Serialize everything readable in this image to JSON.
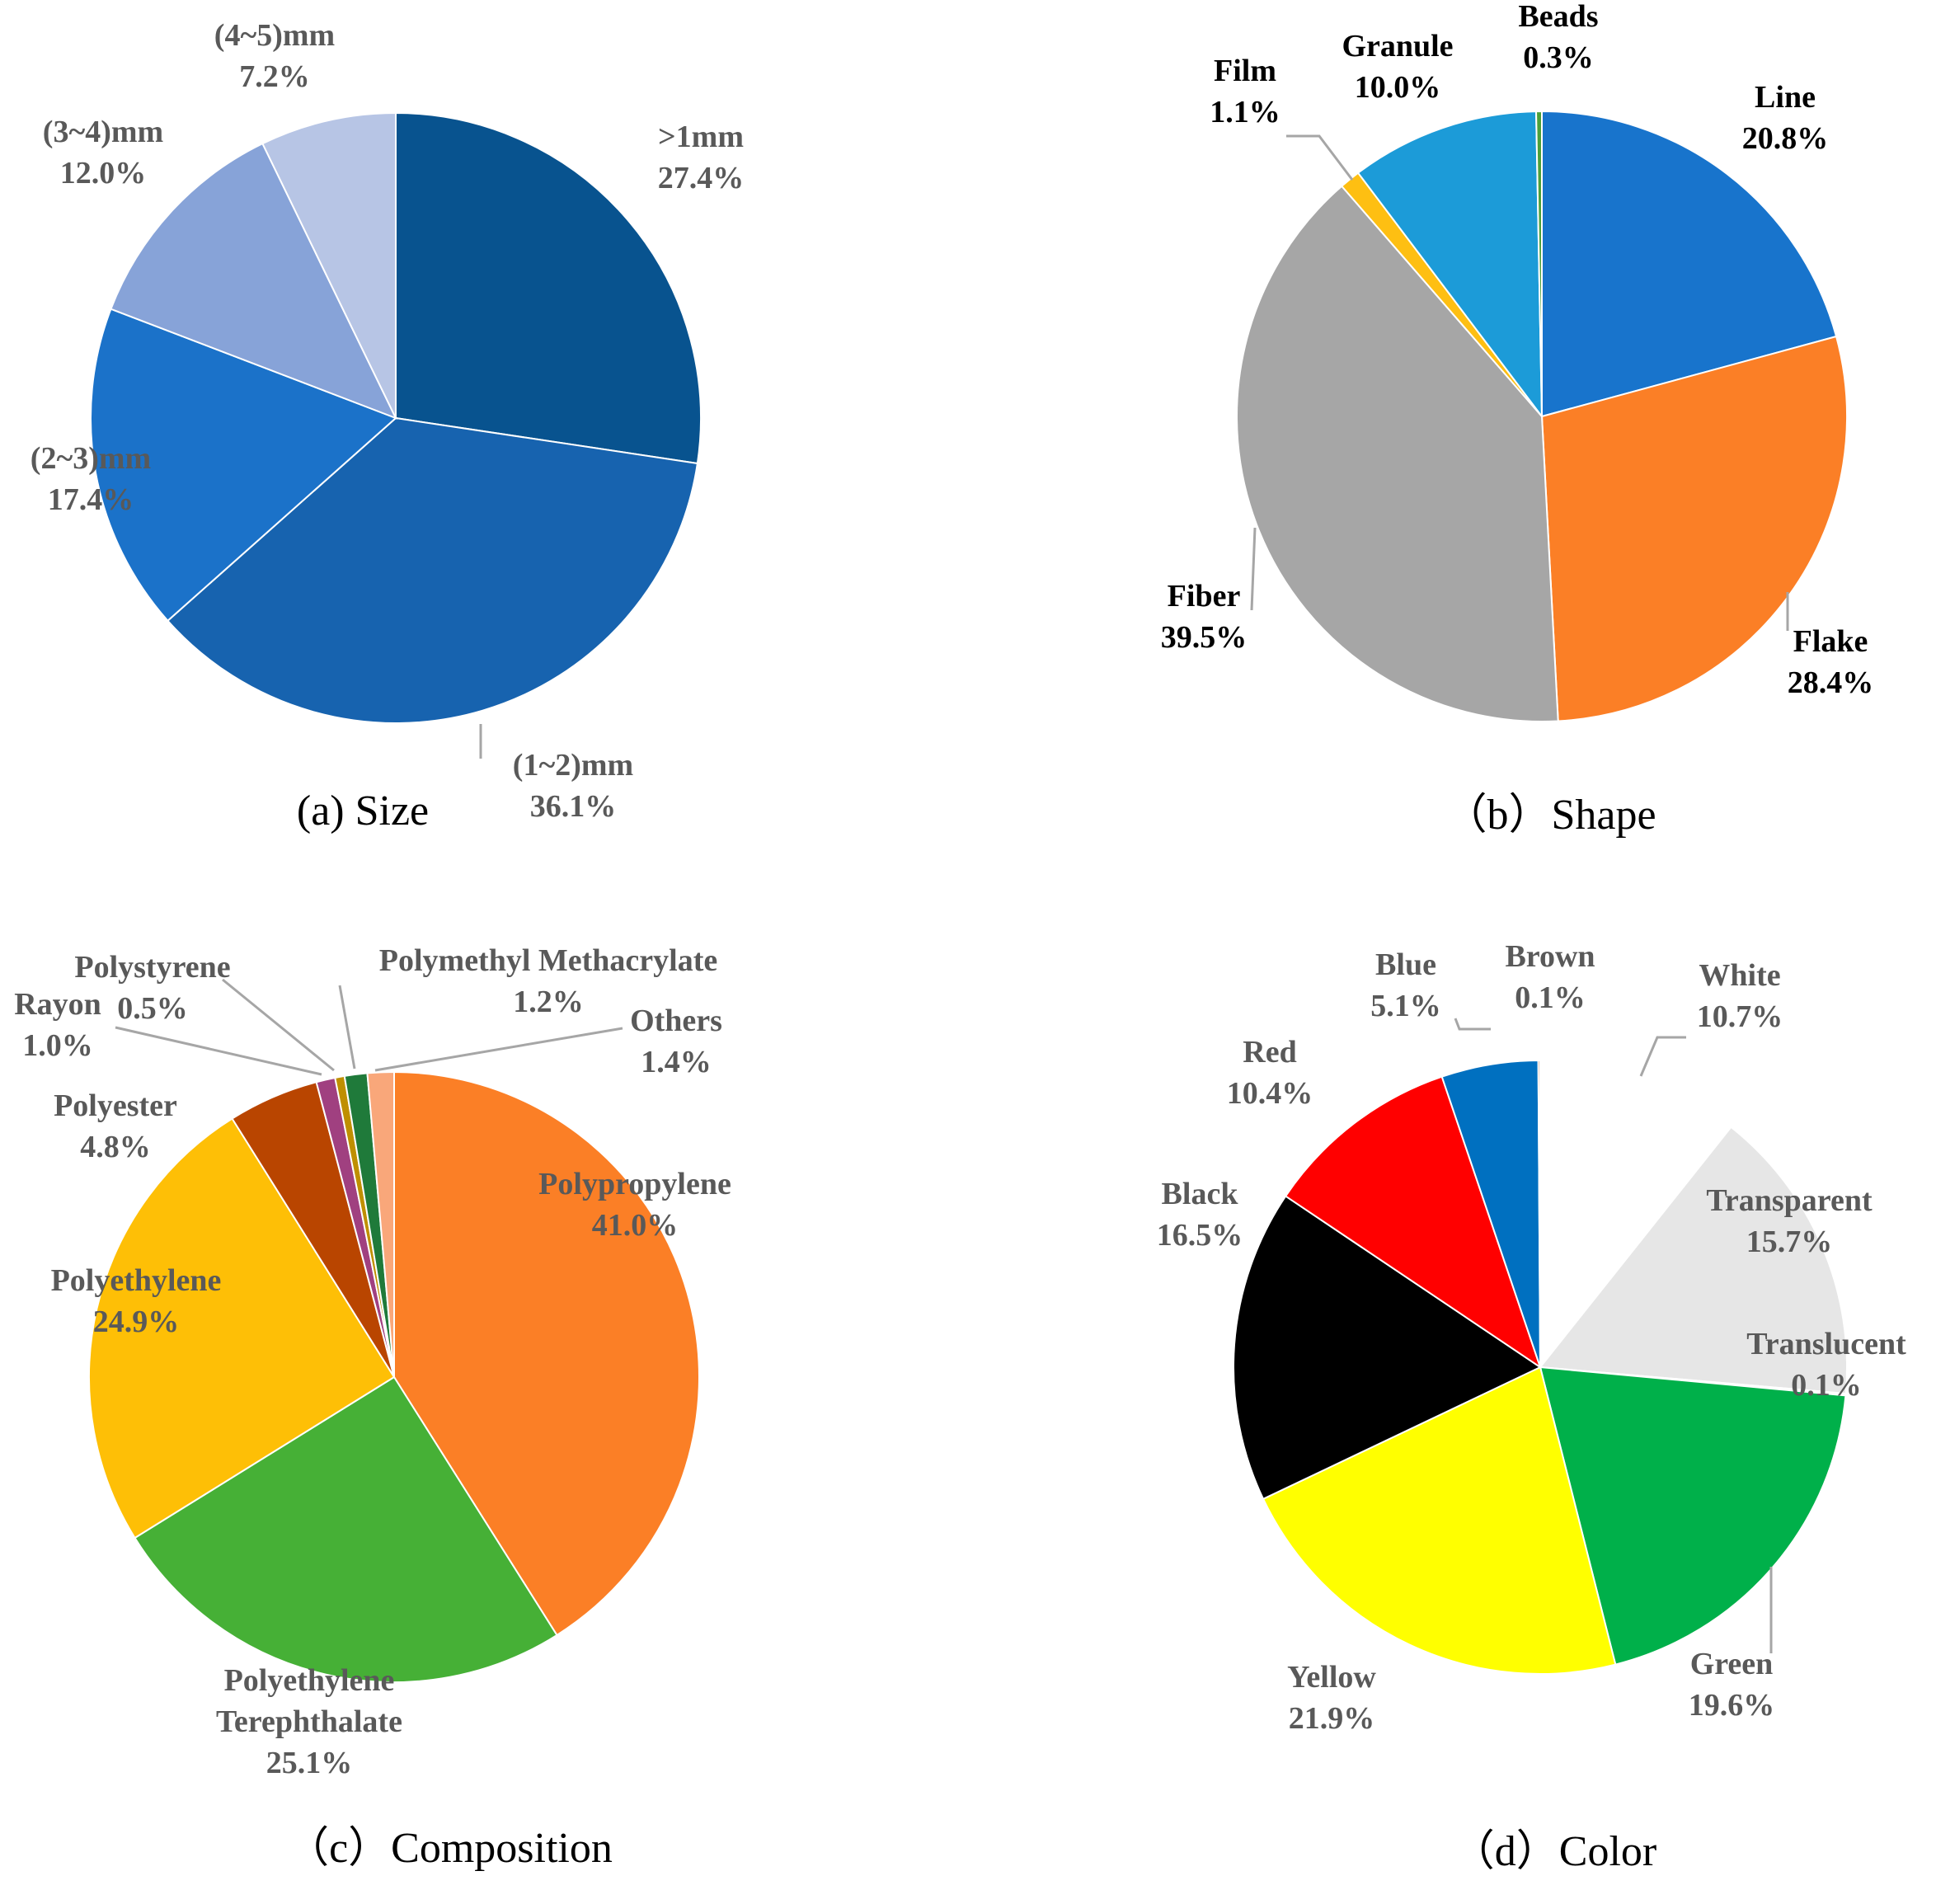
{
  "chart_data": [
    {
      "id": "size",
      "type": "pie",
      "title": "(a) Size",
      "label_color": "#595959",
      "slices": [
        {
          "label": ">1mm",
          "value": 27.4,
          "pct": "27.4%",
          "color": "#08538F"
        },
        {
          "label": "(1~2)mm",
          "value": 36.1,
          "pct": "36.1%",
          "color": "#1763AF"
        },
        {
          "label": "(2~3)mm",
          "value": 17.4,
          "pct": "17.4%",
          "color": "#1B72C9"
        },
        {
          "label": "(3~4)mm",
          "value": 12.0,
          "pct": "12.0%",
          "color": "#87A3D8"
        },
        {
          "label": "(4~5)mm",
          "value": 7.2,
          "pct": "7.2%",
          "color": "#B7C5E5"
        }
      ]
    },
    {
      "id": "shape",
      "type": "pie",
      "title": "（b）Shape",
      "label_color": "#000000",
      "slices": [
        {
          "label": "Line",
          "value": 20.8,
          "pct": "20.8%",
          "color": "#1874CC"
        },
        {
          "label": "Flake",
          "value": 28.4,
          "pct": "28.4%",
          "color": "#FB7F26"
        },
        {
          "label": "Fiber",
          "value": 39.5,
          "pct": "39.5%",
          "color": "#A6A6A6"
        },
        {
          "label": "Film",
          "value": 1.1,
          "pct": "1.1%",
          "color": "#FEBF12"
        },
        {
          "label": "Granule",
          "value": 10.0,
          "pct": "10.0%",
          "color": "#1C9BD8"
        },
        {
          "label": "Beads",
          "value": 0.3,
          "pct": "0.3%",
          "color": "#4BA03A"
        }
      ]
    },
    {
      "id": "composition",
      "type": "pie",
      "title": "（c）Composition",
      "label_color": "#595959",
      "slices": [
        {
          "label": "Polypropylene",
          "value": 41.0,
          "pct": "41.0%",
          "color": "#FB7F26"
        },
        {
          "label": "Polyethylene Terephthalate",
          "value": 25.1,
          "pct": "25.1%",
          "color": "#46B036"
        },
        {
          "label": "Polyethylene",
          "value": 24.9,
          "pct": "24.9%",
          "color": "#FEBF06"
        },
        {
          "label": "Polyester",
          "value": 4.8,
          "pct": "4.8%",
          "color": "#B94500"
        },
        {
          "label": "Rayon",
          "value": 1.0,
          "pct": "1.0%",
          "color": "#A04080"
        },
        {
          "label": "Polystyrene",
          "value": 0.5,
          "pct": "0.5%",
          "color": "#BF8F00"
        },
        {
          "label": "Polymethyl Methacrylate",
          "value": 1.2,
          "pct": "1.2%",
          "color": "#1F7A3A"
        },
        {
          "label": "Others",
          "value": 1.4,
          "pct": "1.4%",
          "color": "#F9A77A"
        }
      ]
    },
    {
      "id": "color",
      "type": "pie",
      "title": "（d）Color",
      "label_color": "#595959",
      "slices": [
        {
          "label": "White",
          "value": 10.7,
          "pct": "10.7%",
          "color": "#FFFFFF"
        },
        {
          "label": "Transparent",
          "value": 15.7,
          "pct": "15.7%",
          "color": "#E6E6E6"
        },
        {
          "label": "Translucent",
          "value": 0.1,
          "pct": "0.1%",
          "color": "#F2F2F2"
        },
        {
          "label": "Green",
          "value": 19.6,
          "pct": "19.6%",
          "color": "#00B04A"
        },
        {
          "label": "Yellow",
          "value": 21.9,
          "pct": "21.9%",
          "color": "#FFFF00"
        },
        {
          "label": "Black",
          "value": 16.5,
          "pct": "16.5%",
          "color": "#000000"
        },
        {
          "label": "Red",
          "value": 10.4,
          "pct": "10.4%",
          "color": "#FF0000"
        },
        {
          "label": "Blue",
          "value": 5.1,
          "pct": "5.1%",
          "color": "#0070C0"
        },
        {
          "label": "Brown",
          "value": 0.1,
          "pct": "0.1%",
          "color": "#8B4513"
        }
      ]
    }
  ]
}
